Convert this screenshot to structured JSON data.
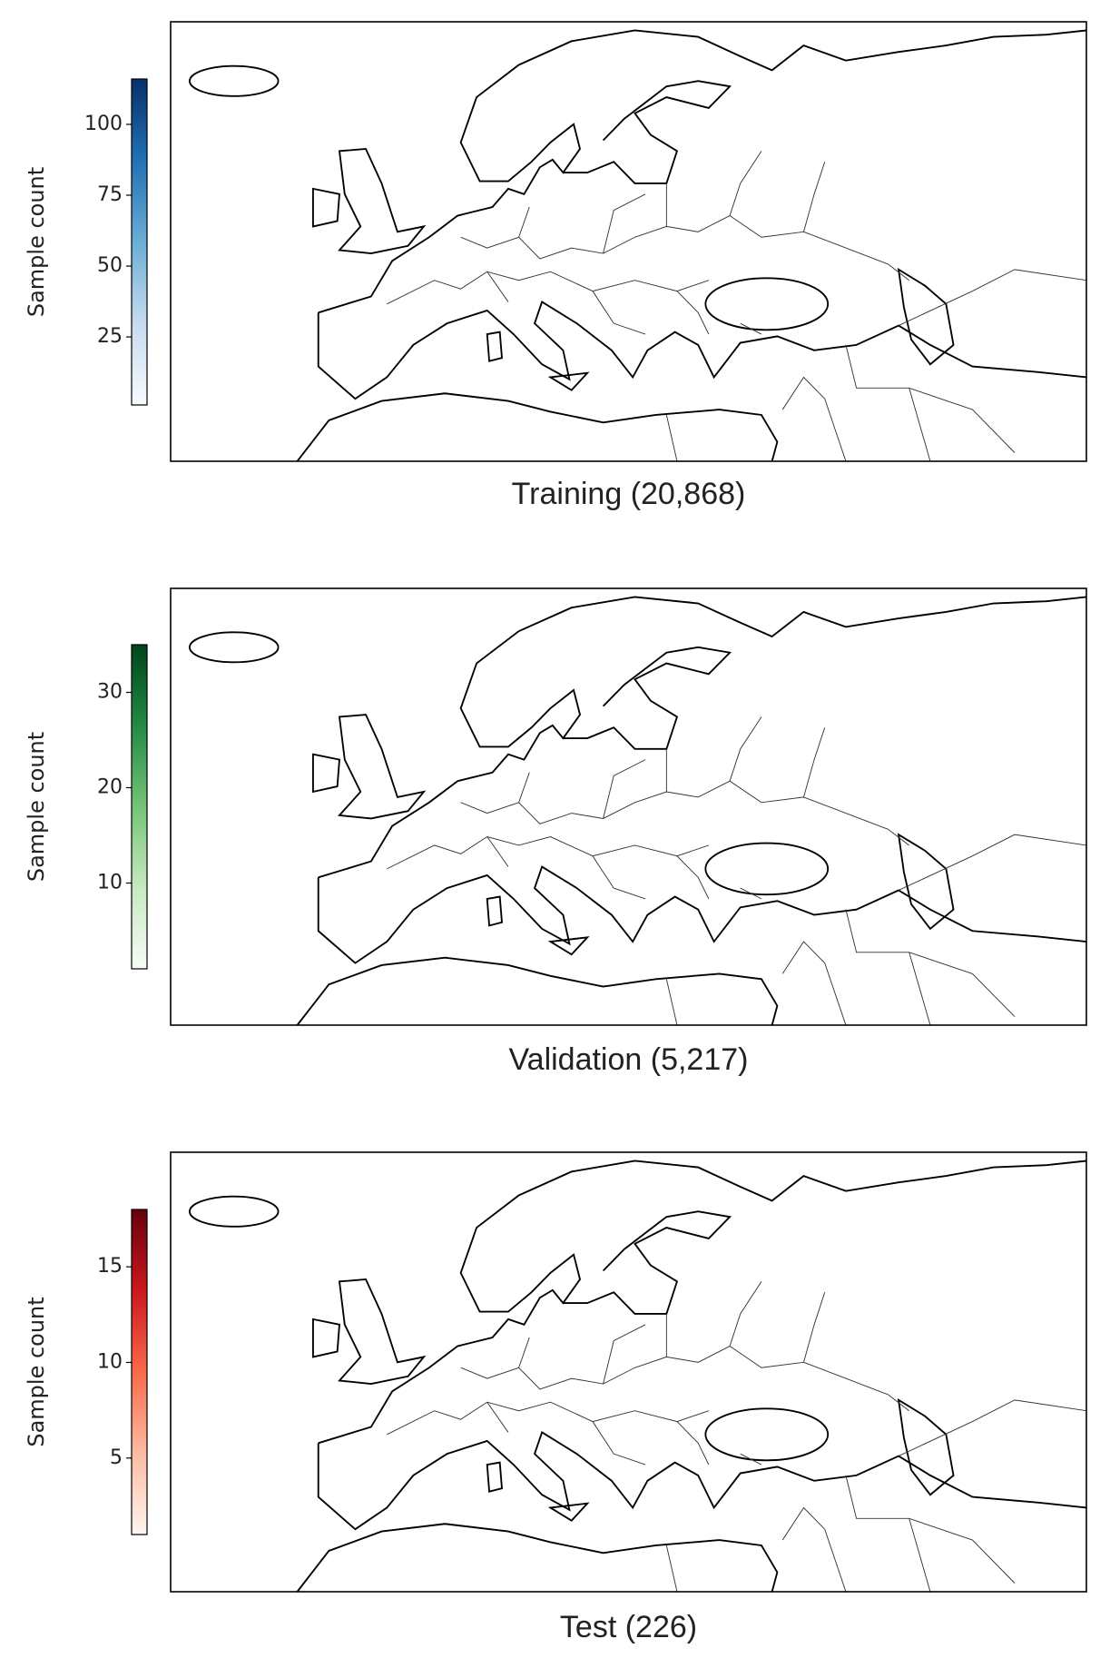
{
  "chart_data": [
    {
      "type": "heatmap",
      "title": "Training (20,868)",
      "colorbar_label": "Sample count",
      "clim": [
        1,
        116
      ],
      "cticks": [
        25,
        50,
        75,
        100
      ],
      "colors": [
        "#f7fbff",
        "#c6dbef",
        "#6baed6",
        "#2171b5",
        "#08306b"
      ]
    },
    {
      "type": "heatmap",
      "title": "Validation (5,217)",
      "colorbar_label": "Sample count",
      "clim": [
        1,
        35
      ],
      "cticks": [
        10,
        20,
        30
      ],
      "colors": [
        "#f7fcf5",
        "#c7e9c0",
        "#74c476",
        "#238b45",
        "#00441b"
      ]
    },
    {
      "type": "heatmap",
      "title": "Test (226)",
      "colorbar_label": "Sample count",
      "clim": [
        1,
        18
      ],
      "cticks": [
        5,
        10,
        15
      ],
      "colors": [
        "#fff5f0",
        "#fcbba1",
        "#fb6a4a",
        "#cb181d",
        "#67000d"
      ]
    }
  ]
}
